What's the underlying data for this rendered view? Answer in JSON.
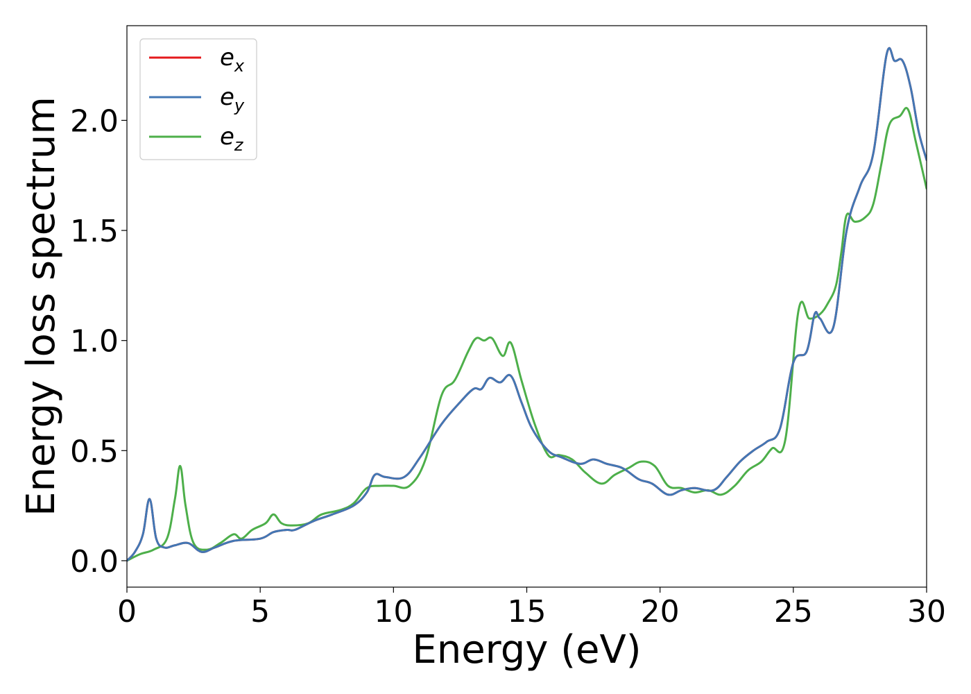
{
  "chart_data": {
    "type": "line",
    "title": "",
    "xlabel": "Energy (eV)",
    "ylabel": "Energy loss spectrum",
    "xlim": [
      0,
      30
    ],
    "ylim": [
      -0.12,
      2.43
    ],
    "xticks": [
      0,
      5,
      10,
      15,
      20,
      25,
      30
    ],
    "xtick_labels": [
      "0",
      "5",
      "10",
      "15",
      "20",
      "25",
      "30"
    ],
    "yticks": [
      0.0,
      0.5,
      1.0,
      1.5,
      2.0
    ],
    "ytick_labels": [
      "0.0",
      "0.5",
      "1.0",
      "1.5",
      "2.0"
    ],
    "grid": false,
    "legend_position": "top-left",
    "series": [
      {
        "name": "e_x",
        "legend_base": "e",
        "legend_sub": "x",
        "color": "#e41a1c",
        "x": [
          0,
          0.3,
          0.6,
          0.85,
          1.1,
          1.4,
          1.8,
          2.3,
          2.8,
          3.3,
          4.0,
          5.0,
          5.5,
          6.0,
          6.3,
          7.0,
          7.7,
          8.5,
          9.0,
          9.3,
          9.7,
          10.4,
          11.0,
          11.8,
          12.5,
          13.0,
          13.3,
          13.6,
          14.0,
          14.4,
          14.8,
          15.2,
          15.8,
          16.3,
          17.0,
          17.5,
          18.0,
          18.6,
          19.2,
          19.7,
          20.3,
          20.8,
          21.3,
          22.0,
          22.5,
          23.0,
          23.5,
          24.0,
          24.5,
          25.0,
          25.5,
          25.8,
          26.0,
          26.5,
          27.0,
          27.5,
          28.0,
          28.5,
          28.8,
          29.1,
          29.4,
          29.7,
          30.0
        ],
        "y": [
          0.0,
          0.04,
          0.12,
          0.28,
          0.1,
          0.06,
          0.07,
          0.08,
          0.04,
          0.06,
          0.09,
          0.1,
          0.13,
          0.14,
          0.14,
          0.18,
          0.21,
          0.25,
          0.31,
          0.39,
          0.38,
          0.38,
          0.47,
          0.62,
          0.72,
          0.78,
          0.78,
          0.83,
          0.81,
          0.84,
          0.72,
          0.6,
          0.5,
          0.47,
          0.44,
          0.46,
          0.44,
          0.42,
          0.37,
          0.35,
          0.3,
          0.32,
          0.33,
          0.32,
          0.38,
          0.45,
          0.5,
          0.54,
          0.6,
          0.9,
          0.95,
          1.12,
          1.1,
          1.06,
          1.5,
          1.7,
          1.85,
          2.3,
          2.27,
          2.27,
          2.15,
          1.95,
          1.82
        ]
      },
      {
        "name": "e_y",
        "legend_base": "e",
        "legend_sub": "y",
        "color": "#4277b4",
        "x": [
          0,
          0.3,
          0.6,
          0.85,
          1.1,
          1.4,
          1.8,
          2.3,
          2.8,
          3.3,
          4.0,
          5.0,
          5.5,
          6.0,
          6.3,
          7.0,
          7.7,
          8.5,
          9.0,
          9.3,
          9.7,
          10.4,
          11.0,
          11.8,
          12.5,
          13.0,
          13.3,
          13.6,
          14.0,
          14.4,
          14.8,
          15.2,
          15.8,
          16.3,
          17.0,
          17.5,
          18.0,
          18.6,
          19.2,
          19.7,
          20.3,
          20.8,
          21.3,
          22.0,
          22.5,
          23.0,
          23.5,
          24.0,
          24.5,
          25.0,
          25.5,
          25.8,
          26.0,
          26.5,
          27.0,
          27.5,
          28.0,
          28.5,
          28.8,
          29.1,
          29.4,
          29.7,
          30.0
        ],
        "y": [
          0.0,
          0.04,
          0.12,
          0.28,
          0.1,
          0.06,
          0.07,
          0.08,
          0.04,
          0.06,
          0.09,
          0.1,
          0.13,
          0.14,
          0.14,
          0.18,
          0.21,
          0.25,
          0.31,
          0.39,
          0.38,
          0.38,
          0.47,
          0.62,
          0.72,
          0.78,
          0.78,
          0.83,
          0.81,
          0.84,
          0.72,
          0.6,
          0.5,
          0.47,
          0.44,
          0.46,
          0.44,
          0.42,
          0.37,
          0.35,
          0.3,
          0.32,
          0.33,
          0.32,
          0.38,
          0.45,
          0.5,
          0.54,
          0.6,
          0.9,
          0.95,
          1.12,
          1.1,
          1.06,
          1.5,
          1.7,
          1.85,
          2.3,
          2.27,
          2.27,
          2.15,
          1.95,
          1.82
        ]
      },
      {
        "name": "e_z",
        "legend_base": "e",
        "legend_sub": "z",
        "color": "#4daf4a",
        "x": [
          0,
          0.5,
          1.0,
          1.5,
          1.8,
          2.0,
          2.2,
          2.5,
          3.0,
          3.5,
          4.0,
          4.3,
          4.7,
          5.2,
          5.5,
          5.8,
          6.2,
          6.8,
          7.3,
          8.0,
          8.5,
          9.0,
          9.5,
          10.0,
          10.6,
          11.2,
          11.8,
          12.3,
          12.8,
          13.1,
          13.4,
          13.7,
          14.1,
          14.4,
          14.8,
          15.3,
          15.8,
          16.2,
          16.7,
          17.2,
          17.8,
          18.3,
          18.8,
          19.3,
          19.8,
          20.3,
          20.8,
          21.3,
          21.8,
          22.3,
          22.8,
          23.3,
          23.8,
          24.2,
          24.7,
          25.2,
          25.6,
          26.0,
          26.3,
          26.6,
          26.8,
          27.0,
          27.3,
          27.7,
          28.0,
          28.3,
          28.6,
          29.0,
          29.3,
          29.6,
          30.0
        ],
        "y": [
          0.0,
          0.03,
          0.05,
          0.1,
          0.28,
          0.43,
          0.25,
          0.08,
          0.05,
          0.08,
          0.12,
          0.1,
          0.14,
          0.17,
          0.21,
          0.17,
          0.16,
          0.17,
          0.21,
          0.23,
          0.26,
          0.33,
          0.34,
          0.34,
          0.34,
          0.46,
          0.75,
          0.82,
          0.95,
          1.01,
          1.0,
          1.01,
          0.93,
          0.99,
          0.82,
          0.62,
          0.48,
          0.48,
          0.46,
          0.4,
          0.35,
          0.39,
          0.42,
          0.45,
          0.43,
          0.34,
          0.33,
          0.31,
          0.32,
          0.3,
          0.34,
          0.41,
          0.45,
          0.51,
          0.55,
          1.14,
          1.1,
          1.12,
          1.17,
          1.25,
          1.4,
          1.57,
          1.54,
          1.56,
          1.62,
          1.8,
          1.98,
          2.02,
          2.05,
          1.9,
          1.69
        ]
      }
    ]
  }
}
